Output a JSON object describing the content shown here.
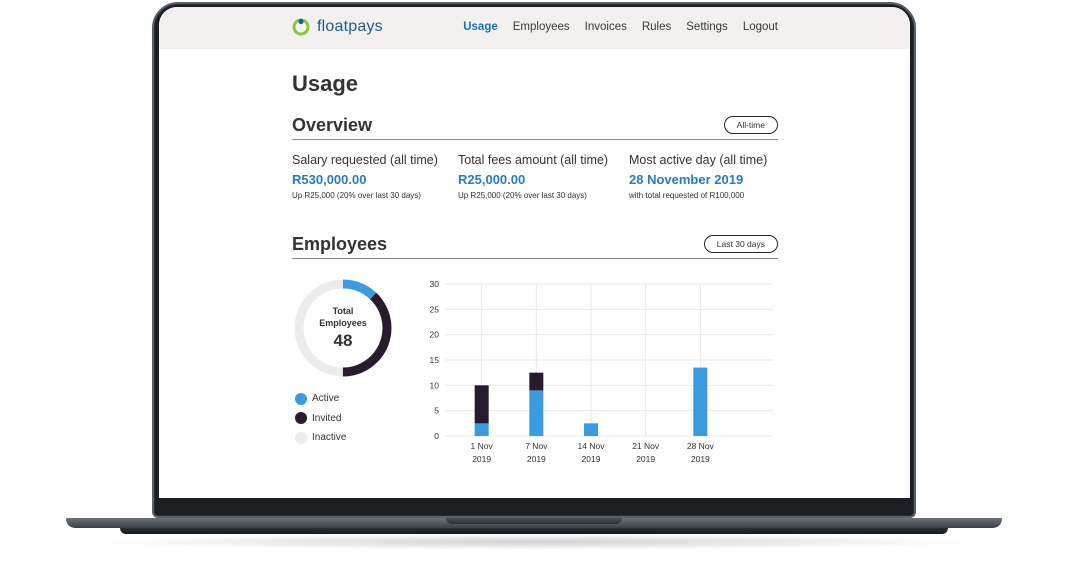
{
  "app": {
    "logo_text": "floatpays",
    "brand_color": "#1f5d8a",
    "logo_ring_color": "#8dc63f"
  },
  "nav": {
    "items": [
      {
        "label": "Usage",
        "active": true
      },
      {
        "label": "Employees",
        "active": false
      },
      {
        "label": "Invoices",
        "active": false
      },
      {
        "label": "Rules",
        "active": false
      },
      {
        "label": "Settings",
        "active": false
      },
      {
        "label": "Logout",
        "active": false
      }
    ]
  },
  "page": {
    "title": "Usage"
  },
  "overview": {
    "title": "Overview",
    "filter_label": "All-time",
    "stats": [
      {
        "label": "Salary requested (all time)",
        "value": "R530,000.00",
        "sub": "Up R25,000 (20% over last 30 days)"
      },
      {
        "label": "Total fees amount (all time)",
        "value": "R25,000.00",
        "sub": "Up R25,000 (20% over last 30 days)"
      },
      {
        "label": "Most active day (all time)",
        "value": "28 November 2019",
        "sub": "with total requested of R100,000"
      }
    ]
  },
  "employees": {
    "title": "Employees",
    "filter_label": "Last 30 days",
    "total_label_line1": "Total",
    "total_label_line2": "Employees",
    "total_count": "48",
    "donut": {
      "active_fraction": 0.12,
      "invited_fraction": 0.38,
      "inactive_fraction": 0.5
    },
    "legend": [
      {
        "label": "Active",
        "color": "#3a9be0"
      },
      {
        "label": "Invited",
        "color": "#2a1a2e"
      },
      {
        "label": "Inactive",
        "color": "#ececec"
      }
    ]
  },
  "chart_data": {
    "type": "bar",
    "stacked": true,
    "categories": [
      [
        "1 Nov",
        "2019"
      ],
      [
        "7 Nov",
        "2019"
      ],
      [
        "14 Nov",
        "2019"
      ],
      [
        "21 Nov",
        "2019"
      ],
      [
        "28 Nov",
        "2019"
      ]
    ],
    "series": [
      {
        "values": [
          2.5,
          9,
          2.5,
          0,
          13.5
        ],
        "color": "#3a9be0"
      },
      {
        "values": [
          7.5,
          3.5,
          0,
          0,
          0
        ],
        "color": "#2a1a2e"
      }
    ],
    "yticks": [
      0,
      5,
      10,
      15,
      20,
      25,
      30
    ],
    "ylim": [
      0,
      30
    ],
    "grid": true,
    "title": "",
    "xlabel": "",
    "ylabel": ""
  }
}
